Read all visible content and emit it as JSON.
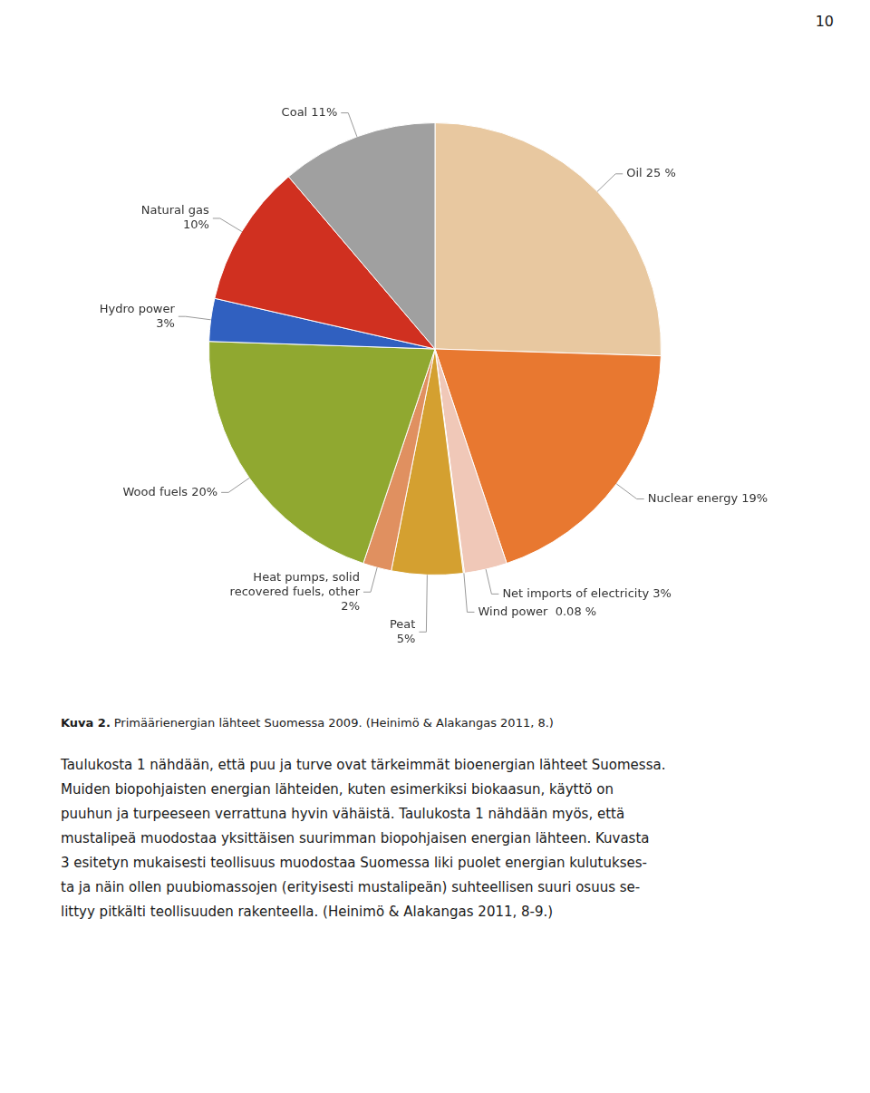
{
  "chart_data": {
    "type": "pie",
    "title": "Kuva 2.",
    "subtitle": "Primäärienergian lähteet Suomessa 2009. (Heinimö & Alakangas 2011, 8.)",
    "categories": [
      "Oil 25 %",
      "Nuclear energy 19%",
      "Net imports of electricity 3%",
      "Wind power  0.08 %",
      "Peat\n5%",
      "Heat pumps, solid\nrecovered fuels, other\n2%",
      "Wood fuels 20%",
      "Hydro power\n3%",
      "Natural gas\n10%",
      "Coal 11%"
    ],
    "values": [
      25,
      19,
      3,
      0.08,
      5,
      2,
      20,
      3,
      10,
      11
    ],
    "colors": [
      "#E8C8A0",
      "#E87830",
      "#F0C8B8",
      "#E8D0B0",
      "#D4A030",
      "#E09060",
      "#90A830",
      "#3060C0",
      "#D03020",
      "#A0A0A0"
    ],
    "annotations": [
      "10",
      "Taulukosta 1 nähdään, että puu ja turve ovat tärkeimmät bioenergian lähteet Suomessa.",
      "Muiden biopohjaisten energian lähteiden, kuten esimerkiksi biokaasun, käyttö on",
      "puuhun ja turpeeseen verrattuna hyvin vähäistä. Taulukosta 1 nähdään myös, että",
      "mustalipeä muodostaa yksittäisen suurimman biopohjaisen energian lähteen. Kuvasta",
      "3 esitetyn mukaisesti teollisuus muodostaa Suomessa liki puolet energian kulutukses-",
      "ta ja näin ollen puubiomassojen (erityisesti mustalipeän) suhteellisen suuri osuus se-",
      "littyy pitkälti teollisuuden rakenteella. (Heinimö & Alakangas 2011, 8-9.)"
    ]
  }
}
